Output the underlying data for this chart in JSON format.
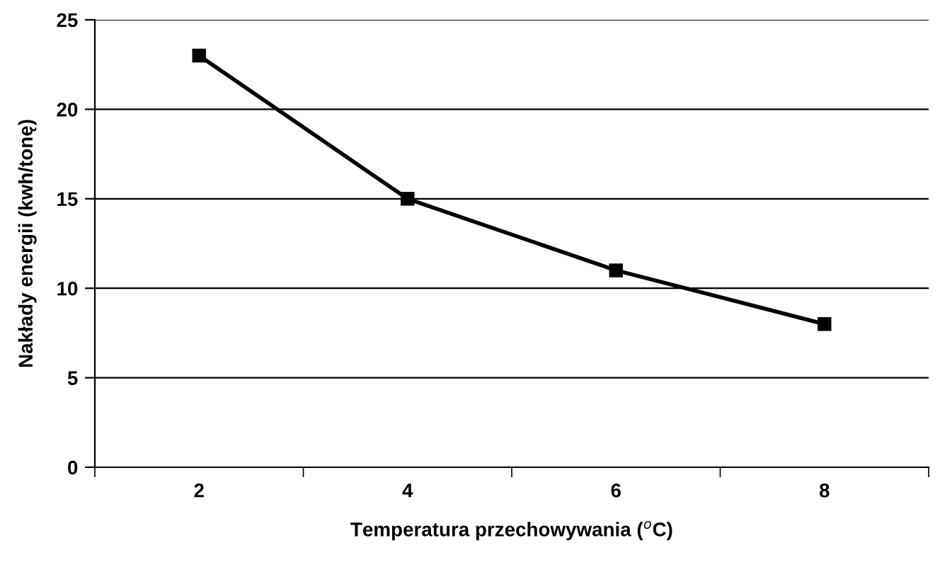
{
  "chart_data": {
    "type": "line",
    "categories": [
      "2",
      "4",
      "6",
      "8"
    ],
    "series": [
      {
        "color": "#000000",
        "values": [
          23,
          15,
          11,
          8
        ]
      }
    ],
    "xlabel": "Temperatura przechowywania ($^{o}$C)",
    "ylabel": "Nakłady energii (kwh/tonę)",
    "ylim": [
      0,
      25
    ],
    "yticks": [
      0,
      5,
      10,
      15,
      20,
      25
    ],
    "grid": "y",
    "marker": "square",
    "line_style": "solid",
    "legend": false
  }
}
